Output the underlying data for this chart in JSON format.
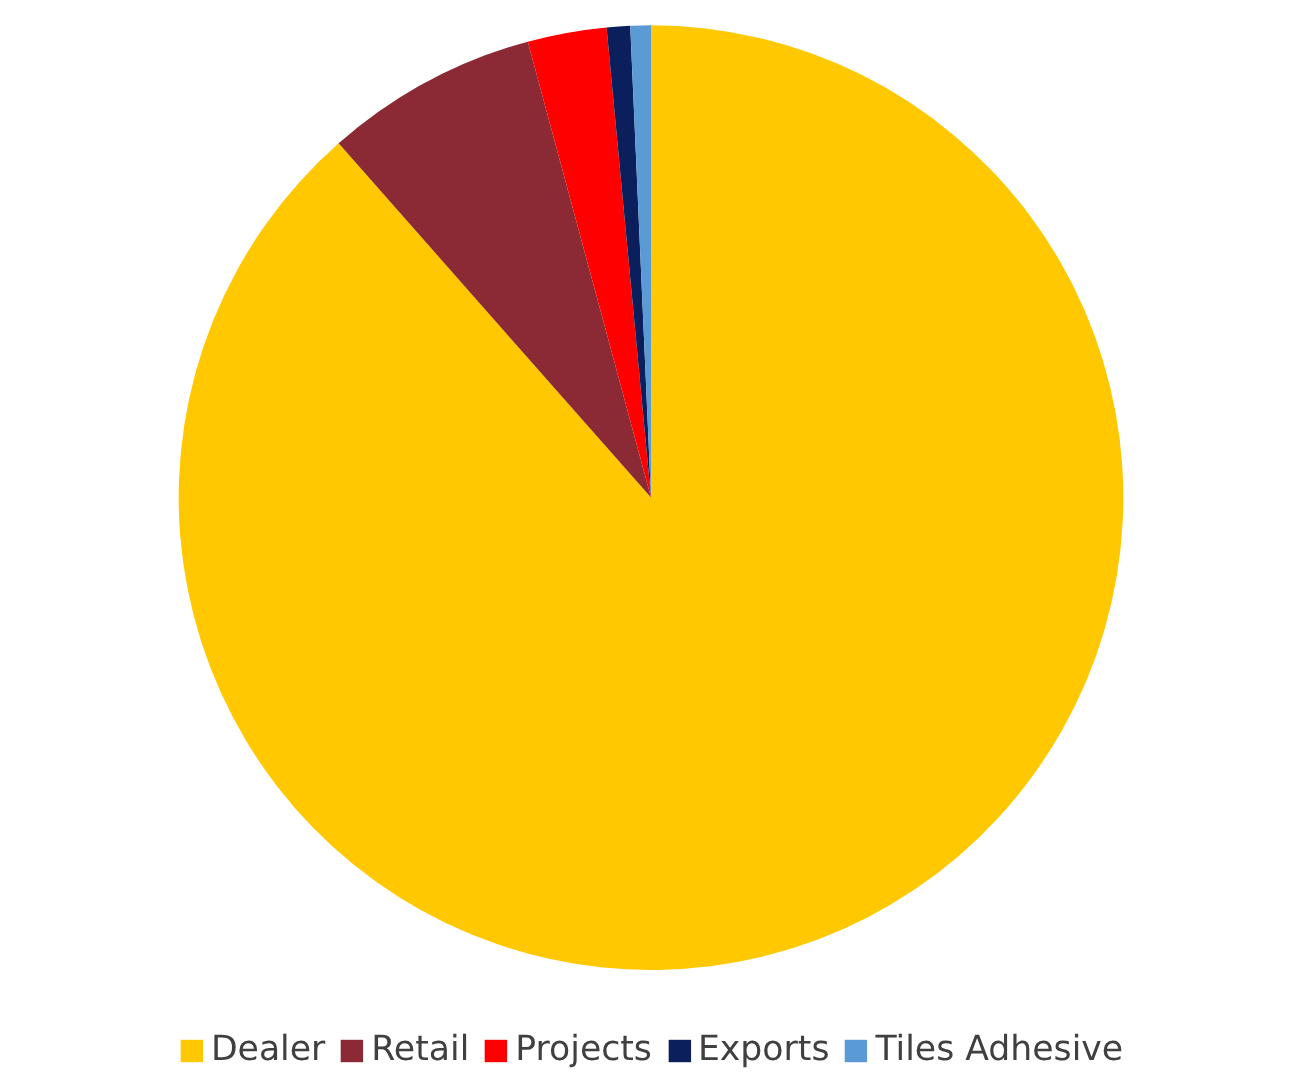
{
  "chart_data": {
    "type": "pie",
    "categories": [
      "Dealer",
      "Retail",
      "Projects",
      "Exports",
      "Tiles Adhesive"
    ],
    "values": [
      88.5,
      7.3,
      2.7,
      0.8,
      0.7
    ],
    "colors": [
      "#ffc800",
      "#8b2a35",
      "#ff0000",
      "#0a1f5c",
      "#5b9bd5"
    ],
    "legend": "bottom"
  }
}
